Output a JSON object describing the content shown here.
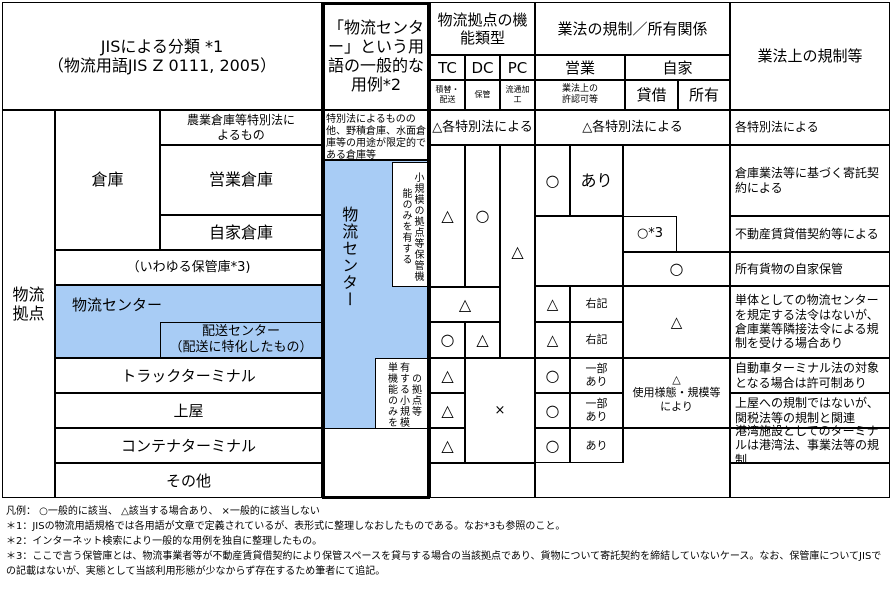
{
  "header": {
    "jis": "JISによる分類 *1\n（物流用語JIS Z 0111, 2005）",
    "usage": "「物流センター」という用語の一般的な用例*2",
    "func_type": "物流拠点の機能類型",
    "tc": "TC",
    "dc": "DC",
    "pc": "PC",
    "tc_sub": "積替・\n配送",
    "dc_sub": "保管",
    "pc_sub": "流通加\n工",
    "law": "業法の規制／所有関係",
    "business": "営業",
    "own": "自家",
    "license": "業法上の\n許認可等",
    "lease": "貸借",
    "owned": "所有",
    "regulation": "業法上の規制等"
  },
  "left": {
    "group": "物流拠点",
    "warehouse": "倉庫",
    "special": "農業倉庫等特別法に\nよるもの",
    "commercial": "営業倉庫",
    "private": "自家倉庫",
    "storage": "（いわゆる保管庫*3)",
    "center": "物流センター",
    "delivery": "配送センター\n（配送に特化したもの）",
    "truck": "トラックターミナル",
    "shed": "上屋",
    "container": "コンテナターミナル",
    "other": "その他"
  },
  "usage": {
    "example": "特別法によるものの他、野積倉庫、水面倉庫等の用途が限定的である倉庫等",
    "center": "物流センター",
    "small_storage": "小規模の拠点等保管機能のみを有する",
    "small_single": "の拠点等\n有する小規模\n単機能のみを"
  },
  "func": {
    "special": "△各特別法による",
    "tc_wh": "△",
    "dc_wh": "○",
    "pc_wh": "△",
    "center": "△",
    "tc_dc": "○",
    "dc_dc": "△",
    "tc_truck": "△",
    "tc_shed": "△",
    "tc_container": "△",
    "none": "×"
  },
  "law": {
    "special": "△各特別法による",
    "wh_mark": "○",
    "wh_lic": "あり",
    "lease": "○*3",
    "owned": "○",
    "c_mark": "△",
    "c_lic": "右記",
    "d_mark": "△",
    "d_lic": "右記",
    "center_own": "△",
    "t_mark": "○",
    "t_lic": "一部\nあり",
    "s_mark": "○",
    "s_lic": "一部\nあり",
    "ct_mark": "○",
    "ct_lic": "あり",
    "usage_own": "△\n使用様態・規模等\nにより"
  },
  "reg": {
    "special": "各特別法による",
    "commercial": "倉庫業法等に基づく寄託契約による",
    "lease": "不動産賃貸借契約等による",
    "owned": "所有貨物の自家保管",
    "center": "単体としての物流センターを規定する法令はないが、倉庫業等隣接法令による規制を受ける場合あり",
    "truck": "自動車ターミナル法の対象となる場合は許可制あり",
    "shed": "上屋への規制ではないが、関税法等の規制と関連",
    "container": "港湾施設としてのターミナルは港湾法、事業法等の規制"
  },
  "legend": [
    "凡例： ○一般的に該当、 △該当する場合あり、 ×一般的に該当しない",
    "＊1：JISの物流用語規格では各用語が文章で定義されているが、表形式に整理しなおしたものである。なお*3も参照のこと。",
    "＊2：インターネット検索により一般的な用例を独自に整理したもの。",
    "＊3：ここで言う保管庫とは、物流事業者等が不動産賃貸借契約により保管スペースを貸与する場合の当該拠点であり、貨物について寄託契約を締結していないケース。なお、保管庫についてJISでの記載はないが、実態として当該利用形態が少なからず存在するため筆者にて追記。"
  ],
  "colors": {
    "highlight": "#a8ccf5"
  }
}
